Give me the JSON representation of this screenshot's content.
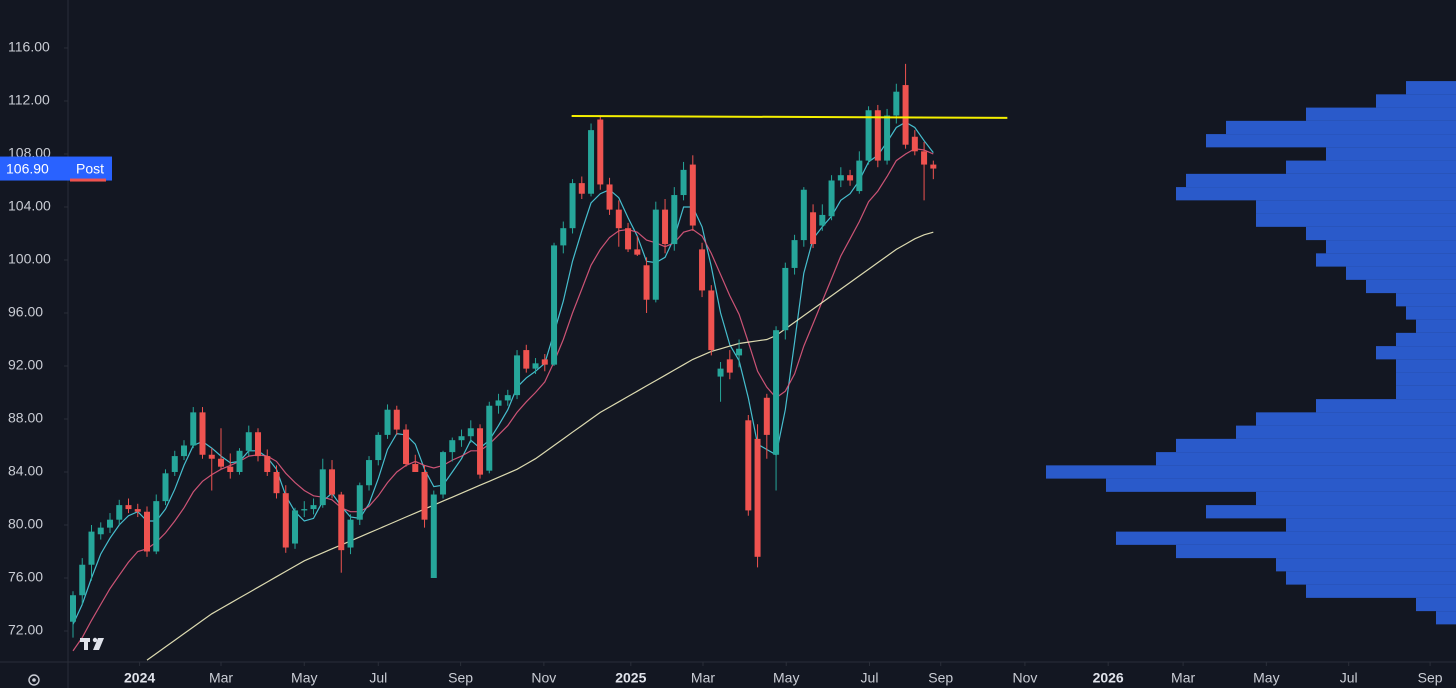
{
  "chart_data": {
    "type": "candlestick",
    "up_color": "#26a69a",
    "down_color": "#ef5350",
    "open": [
      72.7,
      74.7,
      77.0,
      79.3,
      79.8,
      80.4,
      81.5,
      81.2,
      81.0,
      78.0,
      81.8,
      84.0,
      85.2,
      86.0,
      88.5,
      85.3,
      85.0,
      84.4,
      84.0,
      85.6,
      87.0,
      85.2,
      84.0,
      82.4,
      78.6,
      81.1,
      81.2,
      81.5,
      84.2,
      82.3,
      78.3,
      80.4,
      83.0,
      84.9,
      86.8,
      88.7,
      87.2,
      84.6,
      84.0,
      76.0,
      82.3,
      85.5,
      86.4,
      86.7,
      87.3,
      84.1,
      89.0,
      89.4,
      89.8,
      93.2,
      91.8,
      92.5,
      92.1,
      101.1,
      102.4,
      105.8,
      105.0,
      110.6,
      105.7,
      103.8,
      102.4,
      100.8,
      99.6,
      97.0,
      103.8,
      101.2,
      104.9,
      107.2,
      100.8,
      97.7,
      91.2,
      92.5,
      92.8,
      87.9,
      86.5,
      89.6,
      85.3,
      94.7,
      99.4,
      101.5,
      103.6,
      102.6,
      103.3,
      106.0,
      106.4,
      105.2,
      107.5,
      111.3,
      107.5,
      110.9,
      113.2,
      109.3,
      108.2,
      107.2
    ],
    "high": [
      75.0,
      77.5,
      80.0,
      80.2,
      80.9,
      81.9,
      82.0,
      81.6,
      81.4,
      82.3,
      84.2,
      85.6,
      86.4,
      88.9,
      88.9,
      85.8,
      87.3,
      85.4,
      85.8,
      87.5,
      87.3,
      85.7,
      84.5,
      83.0,
      81.3,
      81.8,
      82.0,
      85.0,
      84.9,
      82.5,
      80.8,
      83.2,
      85.2,
      87.0,
      89.1,
      89.0,
      87.6,
      85.3,
      84.5,
      82.6,
      85.6,
      86.6,
      87.2,
      87.9,
      87.6,
      89.3,
      89.9,
      90.2,
      93.2,
      93.6,
      92.6,
      92.9,
      101.3,
      102.9,
      106.1,
      106.3,
      110.3,
      110.8,
      106.2,
      104.5,
      102.8,
      101.8,
      100.2,
      104.4,
      104.6,
      105.5,
      107.4,
      107.9,
      101.3,
      98.1,
      92.3,
      93.2,
      94.0,
      88.3,
      87.6,
      89.9,
      95.0,
      99.8,
      101.9,
      105.5,
      104.2,
      104.2,
      106.4,
      107.0,
      106.8,
      108.2,
      111.6,
      111.7,
      111.4,
      113.3,
      114.8,
      109.8,
      108.9,
      107.5
    ],
    "low": [
      71.5,
      74.0,
      75.8,
      78.9,
      79.4,
      80.0,
      80.9,
      80.6,
      77.6,
      77.8,
      81.5,
      83.7,
      84.9,
      85.8,
      85.0,
      82.6,
      84.2,
      83.5,
      83.8,
      85.2,
      84.8,
      83.7,
      82.0,
      77.9,
      78.2,
      80.6,
      80.8,
      81.3,
      82.0,
      76.4,
      77.8,
      80.0,
      82.6,
      84.5,
      86.5,
      86.8,
      84.4,
      84.0,
      79.8,
      76.0,
      82.0,
      84.8,
      85.9,
      86.2,
      83.5,
      83.9,
      88.4,
      89.0,
      89.5,
      91.5,
      91.4,
      91.6,
      92.0,
      100.5,
      102.0,
      104.6,
      104.8,
      105.3,
      103.4,
      101.0,
      100.6,
      100.3,
      96.0,
      96.8,
      100.5,
      100.7,
      104.5,
      102.2,
      97.2,
      92.8,
      89.3,
      91.0,
      91.9,
      80.7,
      76.8,
      85.0,
      82.6,
      94.0,
      98.9,
      101.0,
      100.9,
      102.2,
      103.0,
      105.5,
      105.6,
      105.0,
      107.2,
      107.0,
      107.2,
      110.3,
      108.4,
      107.9,
      104.5,
      106.1
    ],
    "close": [
      74.7,
      77.0,
      79.5,
      79.8,
      80.4,
      81.5,
      81.2,
      81.0,
      78.0,
      81.8,
      83.9,
      85.2,
      86.0,
      88.5,
      85.3,
      85.0,
      84.4,
      84.0,
      85.6,
      87.0,
      85.2,
      84.0,
      82.4,
      78.3,
      81.1,
      81.2,
      81.5,
      84.2,
      82.3,
      78.1,
      80.4,
      83.0,
      84.9,
      86.8,
      88.7,
      87.2,
      84.6,
      84.0,
      80.4,
      82.3,
      85.5,
      86.4,
      86.7,
      87.3,
      83.8,
      89.0,
      89.4,
      89.8,
      92.8,
      91.8,
      92.2,
      92.1,
      101.1,
      102.4,
      105.8,
      105.0,
      109.8,
      105.7,
      103.8,
      102.4,
      100.8,
      100.4,
      97.0,
      103.8,
      101.2,
      104.9,
      106.8,
      102.6,
      97.7,
      93.2,
      91.8,
      91.5,
      93.3,
      81.1,
      77.6,
      86.8,
      94.7,
      99.4,
      101.5,
      105.3,
      101.2,
      103.4,
      106.0,
      106.4,
      106.0,
      107.5,
      111.3,
      107.5,
      110.9,
      112.7,
      108.7,
      108.2,
      107.2,
      106.9
    ],
    "series": [
      {
        "color": "#4dd0e1",
        "values": [
          72.5,
          74.0,
          76.0,
          77.8,
          79.0,
          80.0,
          80.7,
          81.0,
          80.3,
          80.3,
          81.2,
          82.7,
          84.5,
          86.0,
          86.3,
          85.8,
          85.2,
          84.7,
          84.8,
          85.6,
          85.6,
          85.1,
          84.2,
          82.2,
          81.0,
          80.3,
          80.5,
          81.8,
          82.4,
          81.4,
          80.6,
          80.5,
          81.6,
          83.5,
          85.7,
          86.9,
          86.8,
          86.1,
          84.2,
          82.9,
          83.0,
          84.0,
          85.0,
          86.4,
          85.8,
          86.4,
          87.5,
          88.7,
          90.4,
          91.1,
          91.6,
          92.2,
          94.5,
          96.9,
          99.9,
          102.2,
          104.3,
          105.0,
          105.3,
          104.7,
          103.2,
          101.8,
          99.9,
          99.8,
          100.2,
          101.7,
          104.0,
          104.0,
          102.5,
          99.5,
          96.0,
          93.6,
          92.4,
          89.6,
          86.1,
          85.7,
          85.3,
          88.7,
          93.8,
          99.0,
          101.6,
          102.5,
          103.3,
          104.5,
          105.0,
          106.0,
          107.4,
          107.9,
          108.9,
          110.0,
          110.4,
          110.0,
          109.0,
          108.1
        ]
      },
      {
        "color": "#e05a7e",
        "values": [
          70.5,
          71.5,
          72.8,
          74.0,
          75.2,
          76.2,
          77.2,
          78.0,
          78.2,
          78.7,
          79.4,
          80.3,
          81.3,
          82.5,
          83.3,
          83.8,
          84.2,
          84.5,
          84.8,
          85.2,
          85.3,
          85.2,
          84.8,
          83.9,
          83.2,
          82.6,
          82.2,
          82.1,
          81.9,
          81.3,
          81.0,
          81.0,
          81.4,
          82.2,
          83.2,
          84.0,
          84.5,
          84.8,
          84.5,
          84.3,
          84.5,
          84.9,
          85.2,
          85.6,
          85.6,
          86.1,
          86.8,
          87.5,
          88.5,
          89.3,
          90.0,
          90.8,
          92.3,
          94.0,
          96.0,
          97.8,
          99.6,
          100.8,
          101.7,
          102.2,
          102.3,
          102.1,
          101.5,
          101.3,
          101.0,
          101.3,
          102.1,
          102.3,
          101.8,
          100.5,
          98.9,
          97.3,
          95.9,
          93.8,
          91.6,
          90.4,
          89.6,
          90.1,
          91.4,
          93.5,
          95.2,
          96.9,
          98.6,
          100.3,
          101.6,
          102.9,
          104.4,
          105.2,
          106.3,
          107.5,
          108.0,
          108.4,
          108.3,
          108.0
        ]
      },
      {
        "color": "#f3efc0",
        "values": [
          null,
          null,
          null,
          null,
          null,
          null,
          null,
          null,
          69.8,
          70.3,
          70.8,
          71.3,
          71.8,
          72.3,
          72.8,
          73.3,
          73.7,
          74.1,
          74.5,
          74.9,
          75.3,
          75.7,
          76.1,
          76.5,
          76.9,
          77.3,
          77.6,
          77.9,
          78.2,
          78.5,
          78.8,
          79.1,
          79.4,
          79.7,
          80.0,
          80.3,
          80.6,
          80.9,
          81.2,
          81.5,
          81.8,
          82.1,
          82.4,
          82.7,
          83.0,
          83.3,
          83.6,
          83.9,
          84.2,
          84.6,
          85.0,
          85.5,
          86.0,
          86.5,
          87.0,
          87.5,
          88.0,
          88.5,
          88.9,
          89.3,
          89.7,
          90.1,
          90.5,
          90.9,
          91.3,
          91.7,
          92.1,
          92.5,
          92.8,
          93.1,
          93.3,
          93.5,
          93.7,
          93.8,
          93.9,
          94.0,
          94.3,
          94.8,
          95.3,
          95.8,
          96.3,
          96.8,
          97.3,
          97.8,
          98.3,
          98.8,
          99.3,
          99.8,
          100.3,
          100.8,
          101.2,
          101.6,
          101.9,
          102.1
        ]
      }
    ],
    "annotation_line": {
      "color": "#f5f000",
      "x": [
        53.9,
        101.0
      ],
      "y": [
        110.87,
        110.72
      ]
    },
    "volume_profile": {
      "color": "#2f66e8",
      "prices": [
        113,
        112,
        111,
        110,
        109,
        108,
        107,
        106,
        105,
        104,
        103,
        102,
        101,
        100,
        99,
        98,
        97,
        96,
        95,
        94,
        93,
        92,
        91,
        90,
        89,
        88,
        87,
        86,
        85,
        84,
        83,
        82,
        81,
        80,
        79,
        78,
        77,
        76,
        75,
        74,
        73
      ],
      "values": [
        50,
        80,
        150,
        230,
        250,
        130,
        170,
        270,
        280,
        200,
        200,
        150,
        130,
        140,
        110,
        90,
        60,
        50,
        40,
        60,
        80,
        60,
        60,
        60,
        140,
        200,
        220,
        280,
        300,
        410,
        350,
        200,
        250,
        170,
        340,
        280,
        180,
        170,
        150,
        40,
        20
      ]
    },
    "last_price": {
      "value": 106.9,
      "label": "106.90"
    },
    "session": "Post",
    "xlim": [
      -0.54,
      149.5
    ],
    "ylim": [
      69.66,
      119.62
    ],
    "yticks": [
      {
        "value": 72,
        "label": "72.00"
      },
      {
        "value": 76,
        "label": "76.00"
      },
      {
        "value": 80,
        "label": "80.00"
      },
      {
        "value": 84,
        "label": "84.00"
      },
      {
        "value": 88,
        "label": "88.00"
      },
      {
        "value": 92,
        "label": "92.00"
      },
      {
        "value": 96,
        "label": "96.00"
      },
      {
        "value": 100,
        "label": "100.00"
      },
      {
        "value": 104,
        "label": "104.00"
      },
      {
        "value": 108,
        "label": "108.00"
      },
      {
        "value": 112,
        "label": "112.00"
      },
      {
        "value": 116,
        "label": "116.00"
      }
    ],
    "xticks": [
      {
        "value": 7.2,
        "label": "2024"
      },
      {
        "value": 16.0,
        "label": "Mar"
      },
      {
        "value": 25.0,
        "label": "May"
      },
      {
        "value": 33.0,
        "label": "Jul"
      },
      {
        "value": 41.9,
        "label": "Sep"
      },
      {
        "value": 50.9,
        "label": "Nov"
      },
      {
        "value": 60.3,
        "label": "2025"
      },
      {
        "value": 68.1,
        "label": "Mar"
      },
      {
        "value": 77.1,
        "label": "May"
      },
      {
        "value": 86.1,
        "label": "Jul"
      },
      {
        "value": 93.8,
        "label": "Sep"
      },
      {
        "value": 102.9,
        "label": "Nov"
      },
      {
        "value": 111.9,
        "label": "2026"
      },
      {
        "value": 120.0,
        "label": "Mar"
      },
      {
        "value": 129.0,
        "label": "May"
      },
      {
        "value": 137.9,
        "label": "Jul"
      },
      {
        "value": 146.7,
        "label": "Sep"
      }
    ]
  }
}
